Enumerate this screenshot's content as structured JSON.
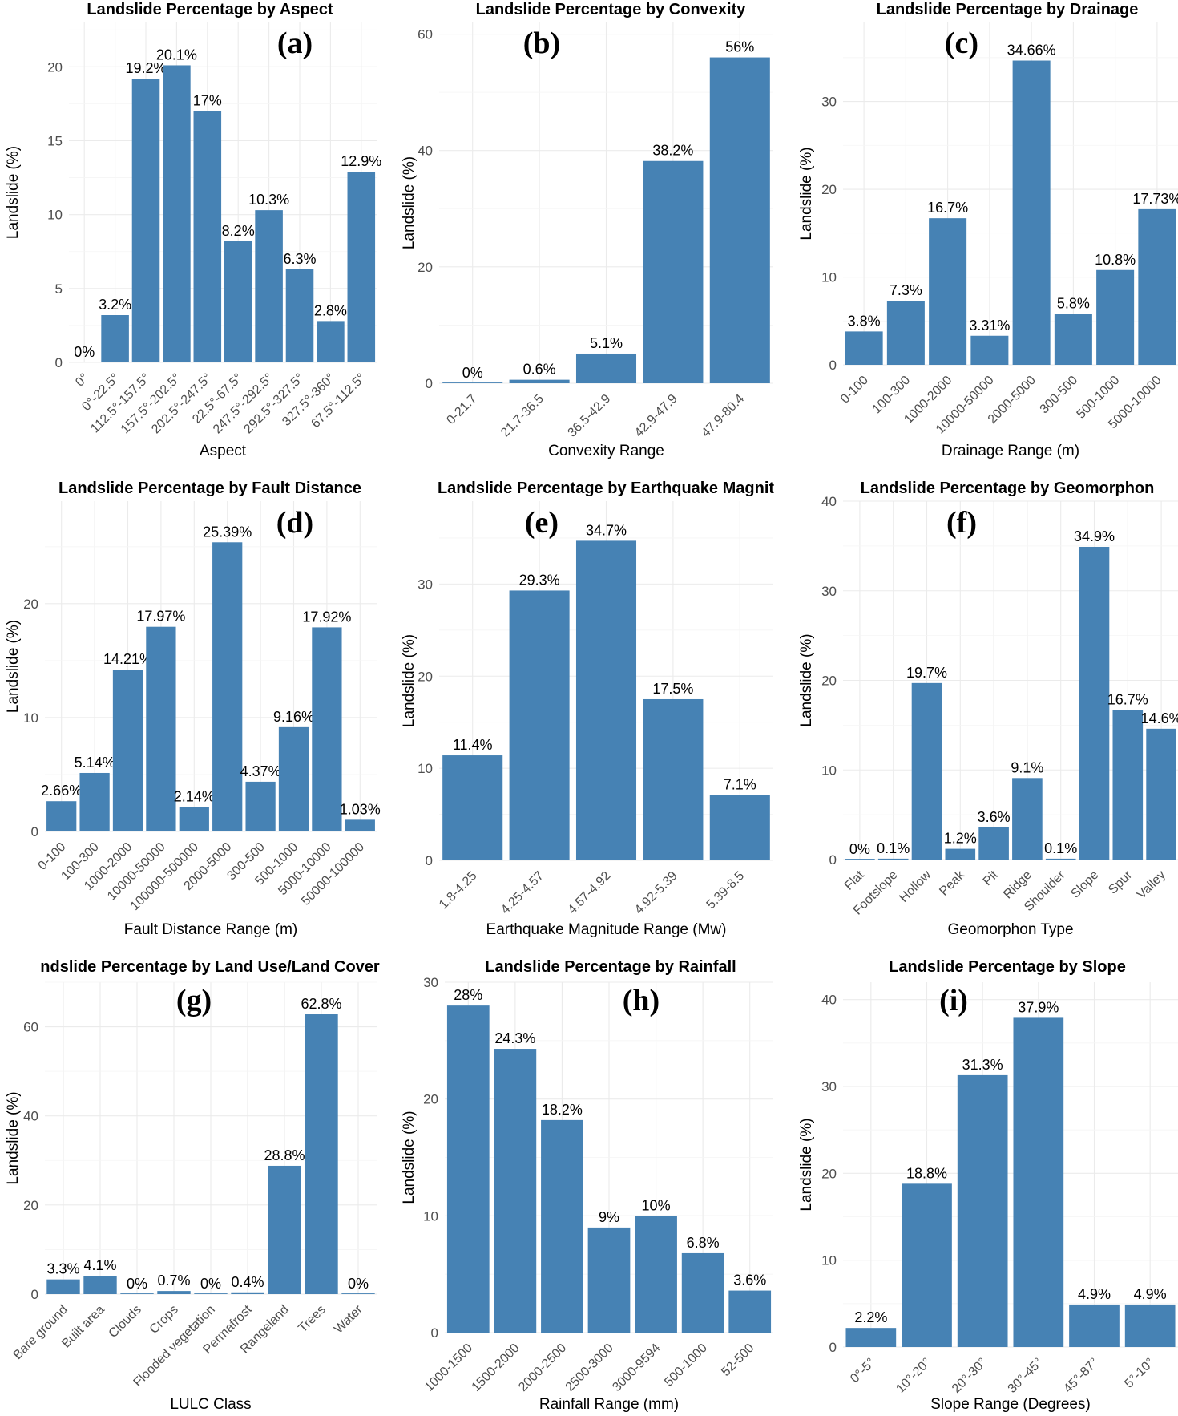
{
  "chart_data": [
    {
      "type": "bar",
      "panel_letter": "(a)",
      "title": "Landslide Percentage by Aspect",
      "xlabel": "Aspect",
      "ylabel": "Landslide (%)",
      "ylim": [
        0,
        23
      ],
      "yticks": [
        0,
        5,
        10,
        15,
        20
      ],
      "categories": [
        "0°",
        "0°-22.5°",
        "112.5°-157.5°",
        "157.5°-202.5°",
        "202.5°-247.5°",
        "22.5°-67.5°",
        "247.5°-292.5°",
        "292.5°-327.5°",
        "327.5°-360°",
        "67.5°-112.5°"
      ],
      "values": [
        0,
        3.2,
        19.2,
        20.1,
        17,
        8.2,
        10.3,
        6.3,
        2.8,
        12.9
      ],
      "labels": [
        "0%",
        "3.2%",
        "19.2%",
        "20.1%",
        "17%",
        "8.2%",
        "10.3%",
        "6.3%",
        "2.8%",
        "12.9%"
      ]
    },
    {
      "type": "bar",
      "panel_letter": "(b)",
      "title": "Landslide Percentage by Convexity",
      "xlabel": "Convexity Range",
      "ylabel": "Landslide (%)",
      "ylim": [
        0,
        62
      ],
      "yticks": [
        0,
        20,
        40,
        60
      ],
      "categories": [
        "0-21.7",
        "21.7-36.5",
        "36.5-42.9",
        "42.9-47.9",
        "47.9-80.4"
      ],
      "values": [
        0,
        0.6,
        5.1,
        38.2,
        56
      ],
      "labels": [
        "0%",
        "0.6%",
        "5.1%",
        "38.2%",
        "56%"
      ]
    },
    {
      "type": "bar",
      "panel_letter": "(c)",
      "title": "Landslide Percentage by Drainage",
      "xlabel": "Drainage Range (m)",
      "ylabel": "Landslide (%)",
      "ylim": [
        0,
        39
      ],
      "yticks": [
        0,
        10,
        20,
        30
      ],
      "categories": [
        "0-100",
        "100-300",
        "1000-2000",
        "10000-50000",
        "2000-5000",
        "300-500",
        "500-1000",
        "5000-10000"
      ],
      "values": [
        3.8,
        7.3,
        16.7,
        3.31,
        34.66,
        5.8,
        10.8,
        17.73
      ],
      "labels": [
        "3.8%",
        "7.3%",
        "16.7%",
        "3.31%",
        "34.66%",
        "5.8%",
        "10.8%",
        "17.73%"
      ]
    },
    {
      "type": "bar",
      "panel_letter": "(d)",
      "title": "Landslide Percentage by Fault Distance",
      "xlabel": "Fault Distance Range (m)",
      "ylabel": "Landslide (%)",
      "ylim": [
        0,
        29
      ],
      "yticks": [
        0,
        10,
        20
      ],
      "categories": [
        "0-100",
        "100-300",
        "1000-2000",
        "10000-50000",
        "100000-500000",
        "2000-5000",
        "300-500",
        "500-1000",
        "5000-10000",
        "50000-100000"
      ],
      "values": [
        2.66,
        5.14,
        14.21,
        17.97,
        2.14,
        25.39,
        4.37,
        9.16,
        17.92,
        1.03
      ],
      "labels": [
        "2.66%",
        "5.14%",
        "14.21%",
        "17.97%",
        "2.14%",
        "25.39%",
        "4.37%",
        "9.16%",
        "17.92%",
        "1.03%"
      ]
    },
    {
      "type": "bar",
      "panel_letter": "(e)",
      "title": "Landslide Percentage by Earthquake Magnit",
      "xlabel": "Earthquake Magnitude Range (Mw)",
      "ylabel": "Landslide (%)",
      "ylim": [
        0,
        39
      ],
      "yticks": [
        0,
        10,
        20,
        30
      ],
      "categories": [
        "1.8-4.25",
        "4.25-4.57",
        "4.57-4.92",
        "4.92-5.39",
        "5.39-8.5"
      ],
      "values": [
        11.4,
        29.3,
        34.7,
        17.5,
        7.1
      ],
      "labels": [
        "11.4%",
        "29.3%",
        "34.7%",
        "17.5%",
        "7.1%"
      ]
    },
    {
      "type": "bar",
      "panel_letter": "(f)",
      "title": "Landslide Percentage by Geomorphon",
      "xlabel": "Geomorphon Type",
      "ylabel": "Landslide (%)",
      "ylim": [
        0,
        40
      ],
      "yticks": [
        0,
        10,
        20,
        30,
        40
      ],
      "categories": [
        "Flat",
        "Footslope",
        "Hollow",
        "Peak",
        "Pit",
        "Ridge",
        "Shoulder",
        "Slope",
        "Spur",
        "Valley"
      ],
      "values": [
        0,
        0.1,
        19.7,
        1.2,
        3.6,
        9.1,
        0.1,
        34.9,
        16.7,
        14.6
      ],
      "labels": [
        "0%",
        "0.1%",
        "19.7%",
        "1.2%",
        "3.6%",
        "9.1%",
        "0.1%",
        "34.9%",
        "16.7%",
        "14.6%"
      ]
    },
    {
      "type": "bar",
      "panel_letter": "(g)",
      "title": "Landslide Percentage by Land Use/Land Cover",
      "title_display": "ndslide Percentage by Land Use/Land Cover",
      "xlabel": "LULC Class",
      "ylabel": "Landslide (%)",
      "ylim": [
        0,
        70
      ],
      "yticks": [
        0,
        20,
        40,
        60
      ],
      "categories": [
        "Bare ground",
        "Built area",
        "Clouds",
        "Crops",
        "Flooded vegetation",
        "Permafrost",
        "Rangeland",
        "Trees",
        "Water"
      ],
      "values": [
        3.3,
        4.1,
        0,
        0.7,
        0,
        0.4,
        28.8,
        62.8,
        0
      ],
      "labels": [
        "3.3%",
        "4.1%",
        "0%",
        "0.7%",
        "0%",
        "0.4%",
        "28.8%",
        "62.8%",
        "0%"
      ]
    },
    {
      "type": "bar",
      "panel_letter": "(h)",
      "title": "Landslide Percentage by Rainfall",
      "xlabel": "Rainfall Range (mm)",
      "ylabel": "Landslide (%)",
      "ylim": [
        0,
        30
      ],
      "yticks": [
        0,
        10,
        20,
        30
      ],
      "categories": [
        "1000-1500",
        "1500-2000",
        "2000-2500",
        "2500-3000",
        "3000-9594",
        "500-1000",
        "52-500"
      ],
      "values": [
        28,
        24.3,
        18.2,
        9,
        10,
        6.8,
        3.6
      ],
      "labels": [
        "28%",
        "24.3%",
        "18.2%",
        "9%",
        "10%",
        "6.8%",
        "3.6%"
      ]
    },
    {
      "type": "bar",
      "panel_letter": "(i)",
      "title": "Landslide Percentage by Slope",
      "xlabel": "Slope Range (Degrees)",
      "ylabel": "Landslide (%)",
      "ylim": [
        0,
        42
      ],
      "yticks": [
        0,
        10,
        20,
        30,
        40
      ],
      "categories": [
        "0°-5°",
        "10°-20°",
        "20°-30°",
        "30°-45°",
        "45°-87°",
        "5°-10°"
      ],
      "values": [
        2.2,
        18.8,
        31.3,
        37.9,
        4.9,
        4.9
      ],
      "labels": [
        "2.2%",
        "18.8%",
        "31.3%",
        "37.9%",
        "4.9%",
        "4.9%"
      ]
    }
  ],
  "colors": {
    "bar": "#4682B4",
    "grid": "#ebebeb"
  }
}
